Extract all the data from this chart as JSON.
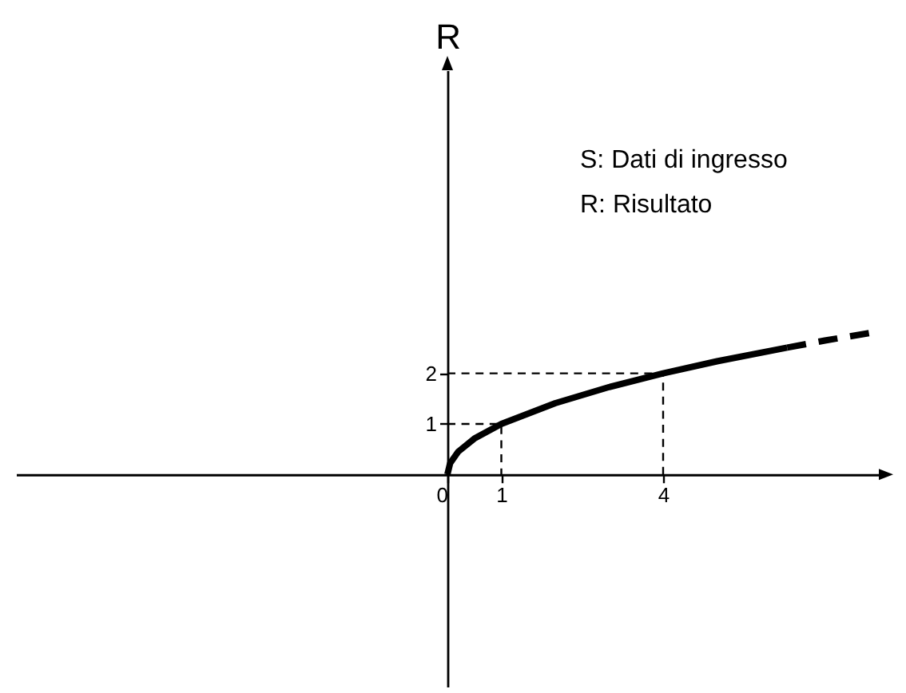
{
  "chart_data": {
    "type": "line",
    "ylabel": "R",
    "annotations": [
      "S: Dati di ingresso",
      "R: Risultato"
    ],
    "xlim": [
      -8,
      8
    ],
    "ylim": [
      -4.2,
      8
    ],
    "xticks": [
      0,
      1,
      4
    ],
    "yticks": [
      1,
      2
    ],
    "series": [
      {
        "color": "#000000",
        "line_style": "solid",
        "x": [
          0,
          0.05,
          0.2,
          0.5,
          1,
          2,
          3,
          4,
          5,
          6.3
        ],
        "values": [
          0,
          0.22,
          0.45,
          0.71,
          1,
          1.41,
          1.73,
          2,
          2.24,
          2.51
        ]
      },
      {
        "color": "#000000",
        "line_style": "dashed",
        "x": [
          6.3,
          7,
          8
        ],
        "values": [
          2.51,
          2.65,
          2.83
        ]
      },
      {
        "color": "#000000",
        "line_style": "dashed",
        "x": [
          0,
          1,
          1
        ],
        "values": [
          1,
          1,
          0
        ]
      },
      {
        "color": "#000000",
        "line_style": "dashed",
        "x": [
          0,
          4,
          4
        ],
        "values": [
          2,
          2,
          0
        ]
      }
    ]
  }
}
